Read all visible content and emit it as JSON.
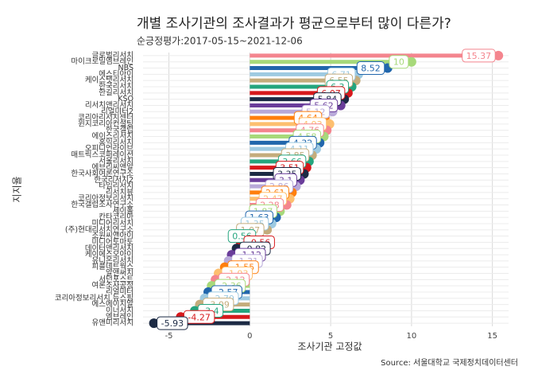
{
  "chart_data": {
    "type": "lollipop_bar",
    "title": "개별 조사기관의 조사결과가 평균으로부터 많이 다른가?",
    "subtitle": "순긍정평가:2017-05-15~2021-12-06",
    "x_label": "조사기관 고정값",
    "y_label": "지지율",
    "source": "Source: 서울대학교 국제정치데이터센터",
    "categories": [
      "글로벌리서치",
      "마이크로밀엠브레인",
      "NBS",
      "에스티아이",
      "케이스탯리서치",
      "한국리서치",
      "한길리서치",
      "KSO",
      "리서치앤리서치",
      "리얼미터2",
      "코리아리서치센터",
      "윈지코리아컨설팅",
      "한국갤럽",
      "에이스리서치",
      "홍익리서치",
      "오피니언라이브",
      "매트릭스코퍼레이션",
      "서울리서치",
      "에브리씨앤알",
      "한국사회여론연구소",
      "한국리서치2",
      "타임리서치",
      "리서치뷰",
      "코리아정보리서치",
      "한국갤럽조사연구소",
      "세이폴",
      "칸타코리아",
      "미디어리서치",
      "(주)현대리서치연구소",
      "조원씨앤아이",
      "미디어토마토",
      "데이터앤리서치",
      "케이에스오아이",
      "유니온리서치",
      "피플네트웍스",
      "알앤써치",
      "서던포스트",
      "여론조사공정",
      "리얼미터",
      "코리아정보리서치 뉴스핌",
      "에스에이치알",
      "이너서치",
      "엠브레인",
      "유앤미리서치"
    ],
    "values": [
      15.37,
      10,
      8.52,
      6.71,
      6.55,
      6.3,
      6.07,
      5.84,
      5.62,
      5.12,
      4.64,
      4.93,
      4.76,
      4.58,
      4.32,
      4.11,
      3.85,
      3.66,
      3.51,
      3.35,
      3.1,
      2.86,
      2.61,
      2.47,
      2.28,
      1.87,
      1.63,
      1.35,
      1.07,
      0.56,
      -0.56,
      -0.82,
      -1.12,
      -1.31,
      -1.55,
      -1.93,
      -2.12,
      -2.36,
      -2.57,
      -2.79,
      -3.09,
      -3.4,
      -4.27,
      -5.93
    ],
    "palette": [
      "#f4858e",
      "#a7d97a",
      "#2166ac",
      "#9ecae1",
      "#c4ac7c",
      "#24a57e",
      "#d7191c",
      "#1c2a44",
      "#6a3d9a",
      "#b8a9d9",
      "#ff7f0e",
      "#fdbf6f"
    ],
    "xlim": [
      -6.6,
      16
    ],
    "xticks": [
      -5,
      0,
      5,
      10,
      15
    ],
    "grid": true
  }
}
